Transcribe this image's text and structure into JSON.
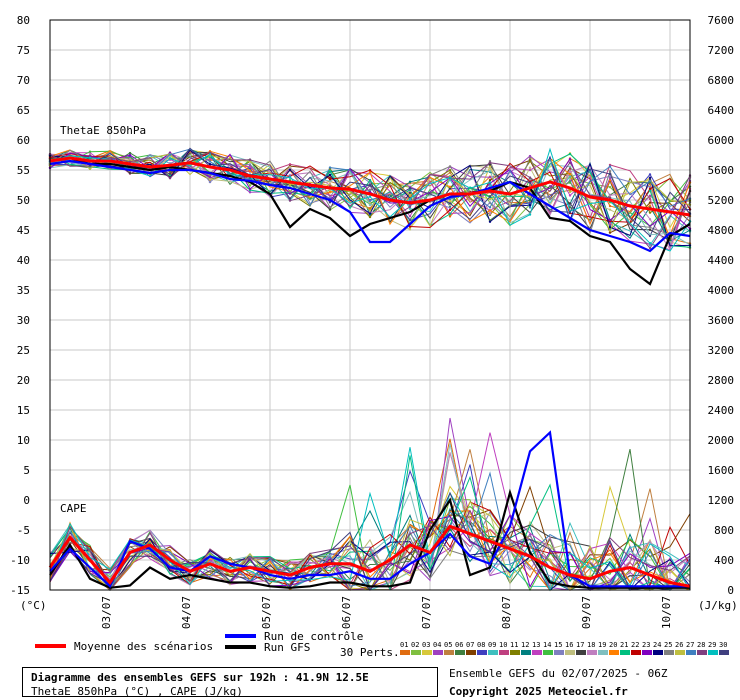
{
  "chart_data": {
    "type": "line",
    "title": "Diagramme des ensembles GEFS sur 192h : 41.9N 12.5E",
    "subtitle": "ThetaE 850hPa (°C) , CAPE (J/kg)",
    "panel_labels": {
      "theta": "ThetaE 850hPa",
      "cape": "CAPE"
    },
    "left_axis": {
      "unit_label": "(°C)",
      "range": [
        -15,
        80
      ],
      "ticks": [
        80,
        75,
        70,
        65,
        60,
        55,
        50,
        45,
        40,
        35,
        30,
        25,
        20,
        15,
        10,
        5,
        0,
        -5,
        -10,
        -15
      ]
    },
    "right_axis": {
      "unit_label": "(J/kg)",
      "range": [
        0,
        7600
      ],
      "ticks": [
        7600,
        7200,
        6800,
        6400,
        6000,
        5600,
        5200,
        4800,
        4400,
        4000,
        3600,
        3200,
        2800,
        2400,
        2000,
        1600,
        1200,
        800,
        400,
        0
      ]
    },
    "x_labels": [
      "03/07",
      "04/07",
      "05/07",
      "06/07",
      "07/07",
      "08/07",
      "09/07",
      "10/07"
    ],
    "x_hours": [
      0,
      6,
      12,
      18,
      24,
      30,
      36,
      42,
      48,
      54,
      60,
      66,
      72,
      78,
      84,
      90,
      96,
      102,
      108,
      114,
      120,
      126,
      132,
      138,
      144,
      150,
      156,
      162,
      168,
      174,
      180,
      186,
      192
    ],
    "theta_mean": [
      56.5,
      57,
      56.5,
      56.5,
      56,
      55.5,
      55.8,
      56.2,
      55.5,
      55,
      54,
      53.5,
      53,
      52.5,
      52,
      51.8,
      51,
      50,
      49.5,
      50,
      51,
      51,
      51.5,
      51,
      52,
      53,
      52,
      50.5,
      50,
      49,
      48.5,
      48,
      47.5
    ],
    "theta_control": [
      56,
      56.5,
      56,
      55.5,
      55,
      54.5,
      55,
      55,
      54.5,
      53.5,
      53.2,
      52.5,
      52,
      51,
      50,
      48,
      43,
      43,
      46,
      49,
      50.5,
      51,
      52,
      53,
      51,
      49,
      47,
      45,
      44,
      43,
      41.5,
      44.5,
      44
    ],
    "theta_gfs": [
      56.5,
      57,
      56,
      56,
      55.5,
      55,
      55.5,
      55,
      54.5,
      54,
      53,
      51,
      45.5,
      48.5,
      47,
      44,
      46,
      47,
      48,
      50,
      51,
      51,
      51.5,
      53,
      52,
      47,
      46.5,
      44,
      43,
      38.5,
      36,
      44,
      46
    ],
    "cape_mean": [
      300,
      700,
      400,
      100,
      500,
      600,
      400,
      250,
      350,
      250,
      300,
      250,
      200,
      300,
      350,
      350,
      250,
      400,
      600,
      500,
      850,
      750,
      650,
      550,
      450,
      300,
      200,
      150,
      250,
      300,
      200,
      100,
      50
    ],
    "cape_control": [
      250,
      550,
      300,
      50,
      650,
      550,
      300,
      250,
      450,
      350,
      300,
      200,
      150,
      200,
      200,
      250,
      150,
      150,
      350,
      500,
      750,
      450,
      350,
      850,
      1850,
      2100,
      200,
      50,
      50,
      50,
      50,
      50,
      50
    ],
    "cape_gfs": [
      200,
      600,
      150,
      30,
      60,
      300,
      150,
      200,
      150,
      100,
      100,
      50,
      30,
      50,
      100,
      100,
      50,
      50,
      100,
      800,
      1200,
      200,
      300,
      1300,
      500,
      100,
      50,
      30,
      30,
      30,
      30,
      30,
      30
    ],
    "legend": {
      "mean": "Moyenne des scénarios",
      "control": "Run de contrôle",
      "gfs": "Run GFS",
      "perts": "30 Perts.",
      "pert_numbers": [
        "01",
        "02",
        "03",
        "04",
        "05",
        "06",
        "07",
        "08",
        "09",
        "10",
        "11",
        "12",
        "13",
        "14",
        "15",
        "16",
        "17",
        "18",
        "19",
        "20",
        "21",
        "22",
        "23",
        "24",
        "25",
        "26",
        "27",
        "28",
        "29",
        "30"
      ],
      "pert_colors": [
        "#e06c10",
        "#7fbf3f",
        "#d7c83a",
        "#9f40c0",
        "#bf7f3f",
        "#3f7f3f",
        "#7f3f00",
        "#3f3fbf",
        "#3fbfbf",
        "#bf3f7f",
        "#7f7f00",
        "#007f7f",
        "#bf3fbf",
        "#3fbf3f",
        "#7f7fbf",
        "#bfbf7f",
        "#3f3f3f",
        "#bf7fbf",
        "#7fbfbf",
        "#ff7f00",
        "#00bf7f",
        "#bf0000",
        "#7f00bf",
        "#00007f",
        "#7f7f7f",
        "#bfbf3f",
        "#3f7fbf",
        "#7f3f7f",
        "#00bfbf",
        "#3f3f7f"
      ]
    },
    "colors": {
      "mean": "#ff0000",
      "control": "#0000ff",
      "gfs": "#000000",
      "grid": "#c8c8c8"
    }
  },
  "footer": {
    "title": "Diagramme des ensembles GEFS sur 192h : 41.9N 12.5E",
    "subtitle": "ThetaE 850hPa (°C) , CAPE (J/kg)",
    "ensemble_date": "Ensemble GEFS du 02/07/2025 - 06Z",
    "copyright": "Copyright 2025 Meteociel.fr"
  }
}
